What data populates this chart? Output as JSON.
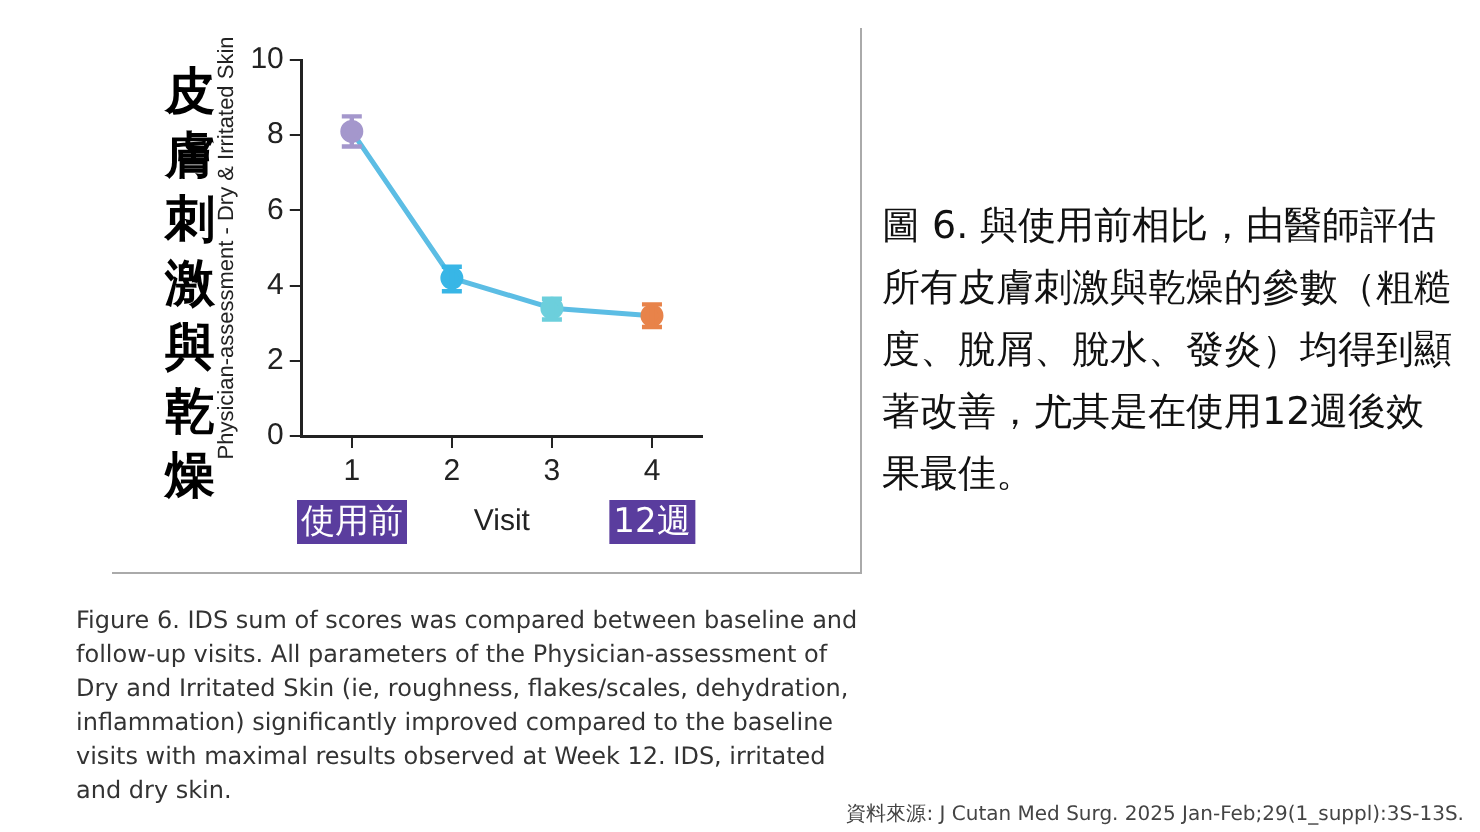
{
  "chart_data": {
    "type": "line",
    "xlabel": "Visit",
    "ylabel": "Physician-assessment - Dry & Irritated Skin",
    "categories": [
      "1",
      "2",
      "3",
      "4"
    ],
    "series": [
      {
        "values": [
          8.1,
          4.2,
          3.4,
          3.2
        ],
        "color": "#5cbde4",
        "colors": [
          "#a497cc",
          "#38b6e6",
          "#6ccfdc",
          "#e8834a"
        ],
        "errors": [
          [
            7.7,
            8.5
          ],
          [
            3.85,
            4.5
          ],
          [
            3.1,
            3.65
          ],
          [
            2.9,
            3.5
          ]
        ]
      }
    ],
    "ylim": [
      0,
      10
    ],
    "yticks": [
      0,
      2,
      4,
      6,
      8,
      10
    ],
    "grid": false,
    "legend": false,
    "marker": "circle",
    "line_style": "solid",
    "annotations": [
      "皮膚刺激與乾燥",
      "圖 6. 與使用前相比，由醫師評估所有皮膚刺激與乾燥的參數（粗糙度、脫屑、脫水、發炎）均得到顯著改善，尤其是在使用12週後效果最佳。",
      "Figure 6.  IDS sum of scores was compared between baseline and follow-up visits. All parameters of the Physician-assessment of Dry and Irritated Skin (ie, roughness, flakes/scales, dehydration, inflammation) significantly improved compared to the baseline visits with maximal results observed at Week 12. IDS, irritated and dry skin.",
      "資料來源: J Cutan Med Surg. 2025 Jan-Feb;29(1_suppl):3S-13S.",
      "使用前",
      "12週"
    ]
  }
}
